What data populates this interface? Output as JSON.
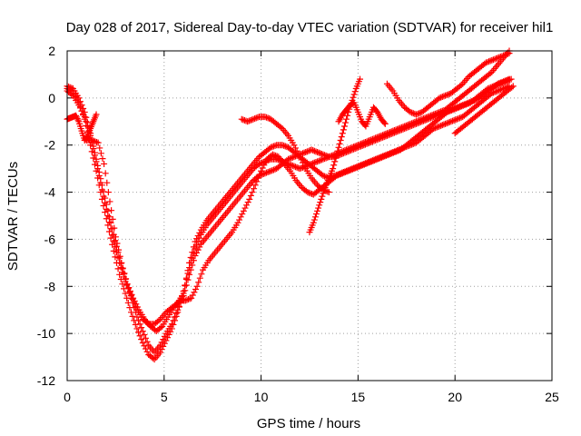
{
  "chart_data": {
    "type": "scatter",
    "title": "Day 028 of 2017, Sidereal Day-to-day VTEC variation (SDTVAR) for receiver hil1",
    "xlabel": "GPS time / hours",
    "ylabel": "SDTVAR / TECUs",
    "xlim": [
      0,
      25
    ],
    "ylim": [
      -12,
      2
    ],
    "xticks": [
      "0",
      "5",
      "10",
      "15",
      "20",
      "25"
    ],
    "yticks": [
      "-12",
      "-10",
      "-8",
      "-6",
      "-4",
      "-2",
      "0",
      "2"
    ],
    "grid": true,
    "marker": "plus",
    "color": "#ff0000",
    "series": [
      {
        "x": [
          0.0,
          0.3,
          0.6,
          0.9,
          1.2,
          1.5,
          1.8,
          2.1,
          2.4,
          2.7,
          3.0,
          3.3,
          3.6,
          3.9,
          4.2,
          4.5,
          4.8,
          5.1,
          5.4,
          5.7,
          6.0,
          6.3,
          6.6,
          6.9,
          7.2,
          7.5,
          7.8,
          8.1,
          8.4,
          8.7,
          9.0,
          9.3,
          9.6,
          9.9,
          10.2,
          10.5,
          10.8,
          11.1,
          11.4,
          11.7,
          12.0,
          12.3,
          12.6,
          12.9,
          13.2,
          13.5,
          13.8,
          14.1,
          14.4,
          14.7,
          15.0,
          15.3,
          15.6,
          15.9,
          16.2,
          16.5,
          16.8,
          17.1,
          17.4,
          17.7,
          18.0,
          18.3,
          18.6,
          18.9,
          19.2,
          19.5,
          19.8,
          20.1,
          20.4,
          20.7,
          21.0,
          21.3,
          21.6,
          21.9,
          22.2,
          22.5,
          22.8
        ],
        "y": [
          0.5,
          0.4,
          0.0,
          -0.6,
          -1.5,
          -2.6,
          -3.7,
          -4.8,
          -5.8,
          -6.8,
          -7.7,
          -8.5,
          -9.3,
          -9.9,
          -10.5,
          -10.8,
          -10.5,
          -10.0,
          -9.6,
          -9.0,
          -8.4,
          -7.5,
          -6.7,
          -6.2,
          -5.9,
          -5.6,
          -5.3,
          -5.0,
          -4.7,
          -4.4,
          -4.1,
          -3.8,
          -3.5,
          -3.3,
          -3.2,
          -3.1,
          -3.0,
          -2.8,
          -2.6,
          -2.5,
          -2.4,
          -2.3,
          -2.2,
          -2.3,
          -2.4,
          -2.5,
          -2.5,
          -2.4,
          -2.3,
          -2.2,
          -2.1,
          -2.0,
          -1.9,
          -1.8,
          -1.7,
          -1.6,
          -1.5,
          -1.4,
          -1.3,
          -1.2,
          -1.1,
          -1.0,
          -0.9,
          -0.8,
          -0.7,
          -0.6,
          -0.5,
          -0.4,
          -0.3,
          -0.2,
          -0.1,
          0.0,
          0.2,
          0.4,
          0.6,
          0.7,
          0.8
        ]
      },
      {
        "x": [
          0.0,
          0.3,
          0.6,
          0.9,
          1.2,
          1.5,
          1.8,
          2.1,
          2.4,
          2.7,
          3.0,
          3.3,
          3.6,
          3.9,
          4.2,
          4.5,
          4.8,
          5.1,
          5.4,
          5.7,
          6.0,
          6.3,
          6.6,
          6.9,
          7.2,
          7.5,
          7.8,
          8.1,
          8.4,
          8.7,
          9.0,
          9.3,
          9.6,
          9.9,
          10.2,
          10.5,
          10.8,
          11.1,
          11.4,
          11.7,
          12.0,
          12.3,
          12.6,
          12.9,
          13.2,
          13.5,
          13.8,
          14.1,
          14.4,
          14.7,
          15.0,
          15.3,
          15.6,
          15.9,
          16.2,
          16.5,
          16.8,
          17.1,
          17.4,
          17.7,
          18.0,
          18.3,
          18.6,
          18.9,
          19.2,
          19.5,
          19.8,
          20.1,
          20.4,
          20.7,
          21.0,
          21.3,
          21.6,
          21.9,
          22.2,
          22.5,
          22.8
        ],
        "y": [
          0.4,
          0.3,
          -0.2,
          -0.9,
          -2.0,
          -3.1,
          -4.3,
          -5.4,
          -6.5,
          -7.5,
          -8.3,
          -9.1,
          -9.8,
          -10.4,
          -10.9,
          -11.1,
          -10.8,
          -10.3,
          -9.8,
          -9.1,
          -8.2,
          -7.2,
          -6.4,
          -5.8,
          -5.4,
          -5.1,
          -4.8,
          -4.5,
          -4.2,
          -3.9,
          -3.6,
          -3.3,
          -3.0,
          -2.8,
          -2.7,
          -2.6,
          -2.6,
          -2.7,
          -2.8,
          -2.9,
          -3.0,
          -2.9,
          -2.8,
          -2.7,
          -2.6,
          -2.5,
          -2.4,
          -2.3,
          -2.2,
          -2.1,
          -2.0,
          -1.9,
          -1.8,
          -1.7,
          -1.6,
          -1.5,
          -1.4,
          -1.3,
          -1.2,
          -1.1,
          -1.0,
          -0.9,
          -0.8,
          -0.7,
          -0.6,
          -0.5,
          -0.3,
          -0.1,
          0.1,
          0.3,
          0.5,
          0.7,
          0.9,
          1.1,
          1.4,
          1.7,
          2.0
        ]
      },
      {
        "x": [
          0.0,
          0.3,
          0.6,
          0.9,
          1.2,
          1.5,
          1.8,
          2.1,
          2.4,
          2.7,
          3.0,
          3.3,
          3.6,
          3.9,
          4.2,
          4.5,
          4.8,
          5.1,
          5.4,
          5.7,
          6.0,
          6.3,
          6.6,
          6.9,
          7.2,
          7.5,
          7.8,
          8.1,
          8.4,
          8.7,
          9.0,
          9.3,
          9.6,
          9.9,
          10.2,
          10.5,
          10.8,
          11.1,
          11.4,
          11.7,
          12.0,
          12.3,
          12.6,
          12.9,
          13.2,
          13.5,
          13.8,
          14.1,
          14.4,
          14.7,
          15.0,
          15.3,
          15.6,
          15.9,
          16.2,
          16.5,
          16.8,
          17.1,
          17.4,
          17.7,
          18.0,
          18.3,
          18.6,
          18.9,
          19.2,
          19.5,
          19.8,
          20.1,
          20.4,
          20.7,
          21.0,
          21.3,
          21.6,
          21.9,
          22.2,
          22.5,
          22.8
        ],
        "y": [
          0.3,
          0.1,
          -0.3,
          -0.8,
          -1.6,
          -2.7,
          -3.9,
          -5.0,
          -6.1,
          -7.0,
          -7.8,
          -8.4,
          -9.0,
          -9.4,
          -9.6,
          -9.6,
          -9.4,
          -9.1,
          -8.9,
          -8.7,
          -8.3,
          -7.0,
          -6.1,
          -5.6,
          -5.2,
          -4.9,
          -4.6,
          -4.3,
          -4.0,
          -3.7,
          -3.4,
          -3.1,
          -2.8,
          -2.5,
          -2.3,
          -2.1,
          -2.0,
          -2.0,
          -2.1,
          -2.3,
          -2.5,
          -2.7,
          -2.9,
          -3.1,
          -3.3,
          -3.4,
          -3.3,
          -3.2,
          -3.1,
          -3.0,
          -2.9,
          -2.8,
          -2.7,
          -2.6,
          -2.5,
          -2.4,
          -2.3,
          -2.2,
          -2.1,
          -2.0,
          -1.9,
          -1.7,
          -1.5,
          -1.3,
          -1.2,
          -1.1,
          -1.0,
          -0.9,
          -0.8,
          -0.6,
          -0.4,
          -0.2,
          0.0,
          0.2,
          0.3,
          0.4,
          0.5
        ]
      },
      {
        "x": [
          1.0,
          1.3,
          1.6,
          1.9,
          2.2,
          2.5,
          2.8,
          3.1,
          3.4,
          3.7,
          4.0,
          4.3,
          4.6,
          4.9,
          5.2,
          5.5,
          5.8,
          6.1,
          6.4,
          6.7,
          7.0,
          7.3,
          7.6,
          7.9,
          8.2,
          8.5,
          8.8,
          9.1,
          9.4,
          9.7,
          10.0,
          10.3,
          10.6,
          10.9,
          11.2,
          11.5,
          11.8,
          12.1,
          12.4,
          12.7,
          13.0,
          13.3,
          13.6,
          13.9,
          14.2,
          14.5,
          14.8,
          15.1,
          15.4,
          15.7,
          16.0,
          16.3,
          16.6,
          16.9,
          17.2,
          17.5,
          17.8,
          18.1,
          18.4,
          18.7,
          19.0,
          19.3,
          19.6,
          19.9,
          20.2,
          20.5,
          20.8,
          21.1,
          21.4,
          21.7,
          22.0,
          22.3,
          22.6,
          22.9
        ],
        "y": [
          -1.8,
          -1.8,
          -1.9,
          -2.8,
          -4.4,
          -5.9,
          -7.0,
          -7.9,
          -8.5,
          -9.0,
          -9.4,
          -9.7,
          -9.9,
          -9.7,
          -9.3,
          -8.9,
          -8.6,
          -8.6,
          -8.5,
          -8.0,
          -7.3,
          -6.9,
          -6.6,
          -6.3,
          -6.0,
          -5.7,
          -5.3,
          -4.8,
          -4.3,
          -3.7,
          -3.1,
          -2.6,
          -2.4,
          -2.5,
          -2.8,
          -3.1,
          -3.5,
          -3.8,
          -4.0,
          -4.1,
          -3.9,
          -3.7,
          -3.5,
          -3.3,
          -3.2,
          -3.1,
          -3.0,
          -2.9,
          -2.8,
          -2.7,
          -2.6,
          -2.5,
          -2.4,
          -2.3,
          -2.2,
          -2.0,
          -1.8,
          -1.6,
          -1.4,
          -1.2,
          -1.0,
          -0.8,
          -0.6,
          -0.5,
          -0.4,
          -0.3,
          -0.2,
          0.0,
          0.2,
          0.4,
          0.5,
          0.6,
          0.7,
          0.8
        ]
      },
      {
        "x": [
          0.0,
          0.15,
          0.3,
          0.45,
          0.6,
          0.75,
          0.9,
          1.05,
          1.2,
          1.35,
          1.5
        ],
        "y": [
          -0.9,
          -0.85,
          -0.8,
          -0.75,
          -1.0,
          -1.4,
          -1.8,
          -1.6,
          -1.3,
          -1.0,
          -0.7
        ]
      },
      {
        "x": [
          9.0,
          9.3,
          9.6,
          9.9,
          10.2,
          10.5,
          10.8,
          11.1,
          11.4,
          11.7,
          12.0,
          12.3,
          12.6,
          12.9,
          13.2,
          13.5
        ],
        "y": [
          -0.9,
          -1.0,
          -0.9,
          -0.8,
          -0.8,
          -0.9,
          -1.1,
          -1.3,
          -1.6,
          -2.0,
          -2.5,
          -3.0,
          -3.4,
          -3.7,
          -3.9,
          -4.0
        ]
      },
      {
        "x": [
          12.5,
          12.7,
          12.9,
          13.1,
          13.3,
          13.5,
          13.7,
          13.9,
          14.1,
          14.3,
          14.5,
          14.7,
          14.9,
          15.1
        ],
        "y": [
          -5.7,
          -5.3,
          -4.8,
          -4.3,
          -3.8,
          -3.4,
          -3.0,
          -2.4,
          -1.8,
          -1.2,
          -0.6,
          -0.1,
          0.4,
          0.8
        ]
      },
      {
        "x": [
          14.0,
          14.2,
          14.4,
          14.6,
          14.8,
          15.0,
          15.2,
          15.4,
          15.6,
          15.8,
          16.0,
          16.2,
          16.4
        ],
        "y": [
          -1.0,
          -0.7,
          -0.5,
          -0.3,
          -0.2,
          -0.6,
          -1.0,
          -1.2,
          -0.8,
          -0.4,
          -0.6,
          -0.9,
          -1.1
        ]
      },
      {
        "x": [
          16.5,
          16.8,
          17.1,
          17.4,
          17.7,
          18.0,
          18.3,
          18.6,
          18.9,
          19.2,
          19.5,
          19.8,
          20.1,
          20.4,
          20.7,
          21.0,
          21.3,
          21.6,
          21.9,
          22.2,
          22.5,
          22.8
        ],
        "y": [
          0.6,
          0.3,
          -0.1,
          -0.4,
          -0.6,
          -0.7,
          -0.6,
          -0.4,
          -0.2,
          0.0,
          0.1,
          0.2,
          0.4,
          0.6,
          0.9,
          1.1,
          1.3,
          1.5,
          1.6,
          1.7,
          1.8,
          1.9
        ]
      },
      {
        "x": [
          20.0,
          20.3,
          20.6,
          20.9,
          21.2,
          21.5,
          21.8,
          22.1,
          22.4,
          22.7,
          23.0
        ],
        "y": [
          -1.5,
          -1.3,
          -1.1,
          -0.9,
          -0.7,
          -0.5,
          -0.3,
          -0.1,
          0.1,
          0.3,
          0.5
        ]
      }
    ]
  }
}
